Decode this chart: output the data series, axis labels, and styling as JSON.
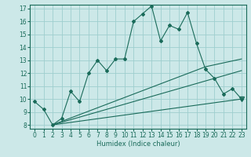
{
  "xlabel": "Humidex (Indice chaleur)",
  "xlim": [
    -0.5,
    23.5
  ],
  "ylim": [
    7.7,
    17.3
  ],
  "yticks": [
    8,
    9,
    10,
    11,
    12,
    13,
    14,
    15,
    16,
    17
  ],
  "xticks": [
    0,
    1,
    2,
    3,
    4,
    5,
    6,
    7,
    8,
    9,
    10,
    11,
    12,
    13,
    14,
    15,
    16,
    17,
    18,
    19,
    20,
    21,
    22,
    23
  ],
  "bg_color": "#cce8e8",
  "line_color": "#1a6b5a",
  "grid_color": "#9ecece",
  "main_line": {
    "x": [
      0,
      1,
      2,
      3,
      4,
      5,
      6,
      7,
      8,
      9,
      10,
      11,
      12,
      13,
      14,
      15,
      16,
      17,
      18,
      19,
      20,
      21,
      22,
      23
    ],
    "y": [
      9.8,
      9.2,
      8.0,
      8.5,
      10.6,
      9.8,
      12.0,
      13.0,
      12.2,
      13.1,
      13.1,
      16.0,
      16.6,
      17.2,
      14.5,
      15.7,
      15.4,
      16.7,
      14.3,
      12.3,
      11.6,
      10.4,
      10.8,
      10.0
    ]
  },
  "ref_line1": {
    "x": [
      2,
      23
    ],
    "y": [
      8.0,
      12.2
    ]
  },
  "ref_line2": {
    "x": [
      2,
      23
    ],
    "y": [
      8.0,
      10.0
    ]
  },
  "ref_line3": {
    "x": [
      2,
      19,
      23
    ],
    "y": [
      8.0,
      12.5,
      13.1
    ]
  },
  "triangle_x": 23,
  "triangle_y": 10.0
}
